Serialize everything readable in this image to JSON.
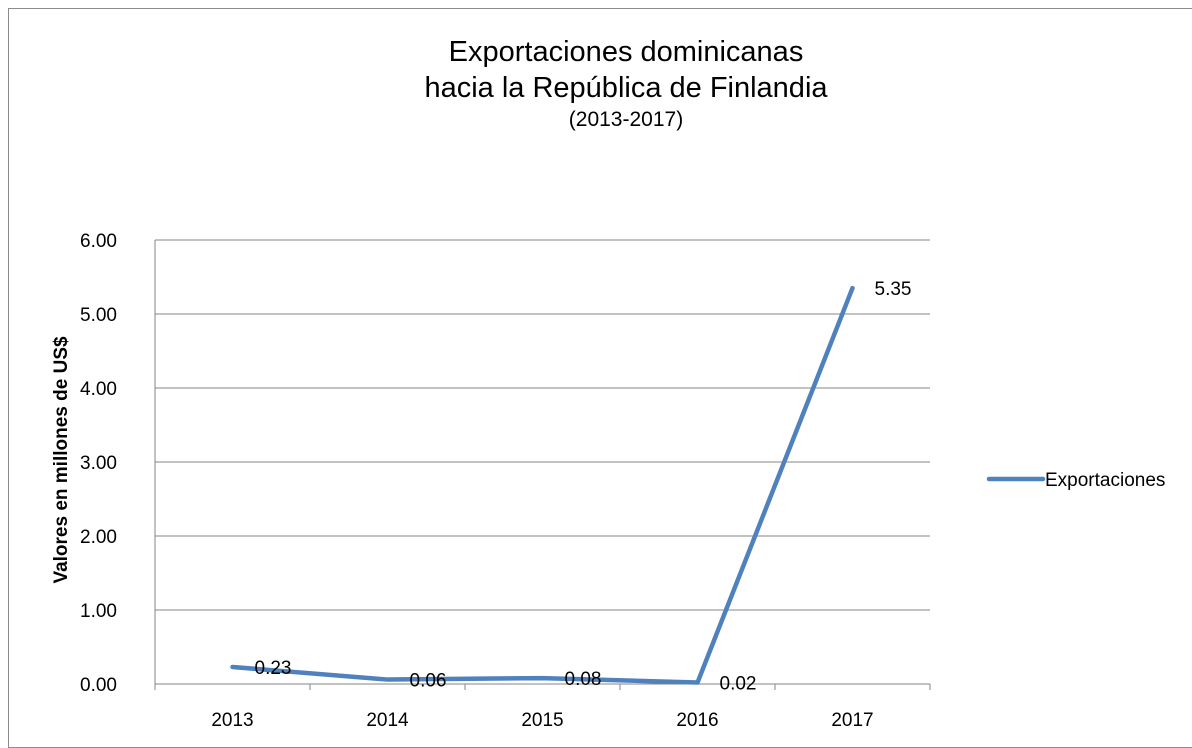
{
  "chart_data": {
    "type": "line",
    "title_line1": "Exportaciones dominicanas",
    "title_line2": "hacia la República de Finlandia",
    "subtitle": "(2013-2017)",
    "xlabel": "",
    "ylabel": "Valores en millones de US$",
    "categories": [
      "2013",
      "2014",
      "2015",
      "2016",
      "2017"
    ],
    "series": [
      {
        "name": "Exportaciones",
        "values": [
          0.23,
          0.06,
          0.08,
          0.02,
          5.35
        ],
        "labels": [
          "0.23",
          "0.06",
          "0.08",
          "0.02",
          "5.35"
        ],
        "color": "#4f81bd"
      }
    ],
    "ylim": [
      0,
      6
    ],
    "yticks": [
      "0.00",
      "1.00",
      "2.00",
      "3.00",
      "4.00",
      "5.00",
      "6.00"
    ],
    "grid": true,
    "legend_position": "right"
  }
}
